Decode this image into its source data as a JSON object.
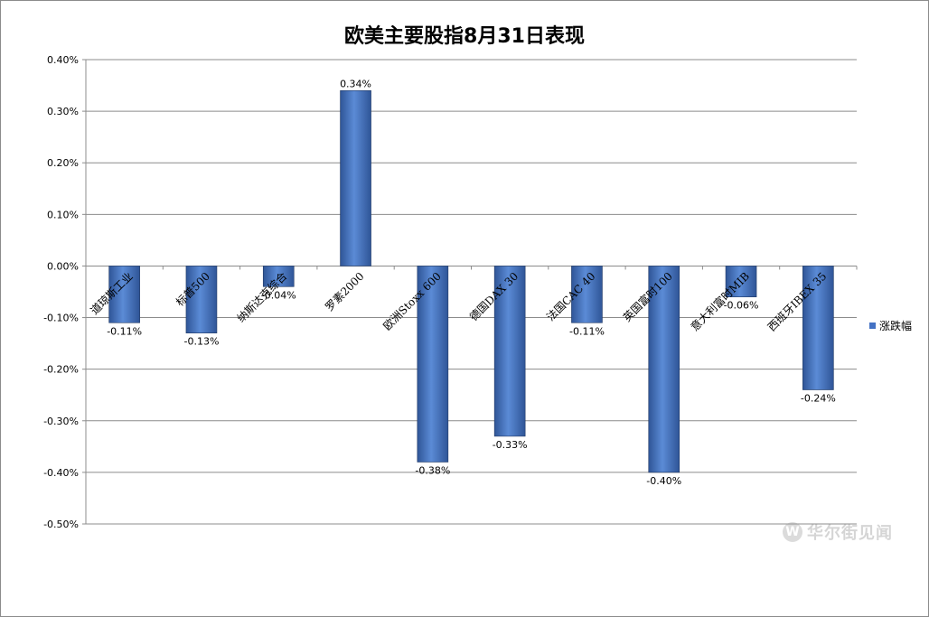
{
  "chart_data": {
    "type": "bar",
    "title": "欧美主要股指8月31日表现",
    "categories": [
      "道琼斯工业",
      "标普500",
      "纳斯达克综合",
      "罗素2000",
      "欧洲Stoxx 600",
      "德国DAX 30",
      "法国CAC 40",
      "英国富时100",
      "意大利富时MIB",
      "西班牙IBEX 35"
    ],
    "series": [
      {
        "name": "涨跌幅",
        "values": [
          -0.11,
          -0.13,
          -0.04,
          0.34,
          -0.38,
          -0.33,
          -0.11,
          -0.4,
          -0.06,
          -0.24
        ]
      }
    ],
    "data_labels": [
      "-0.11%",
      "-0.13%",
      "-0.04%",
      "0.34%",
      "-0.38%",
      "-0.33%",
      "-0.11%",
      "-0.40%",
      "-0.06%",
      "-0.24%"
    ],
    "yticks": [
      "0.40%",
      "0.30%",
      "0.20%",
      "0.10%",
      "0.00%",
      "-0.10%",
      "-0.20%",
      "-0.30%",
      "-0.40%",
      "-0.50%"
    ],
    "ylim": [
      -0.5,
      0.4
    ],
    "grid": true,
    "legend": "right",
    "bar_color": "#4472c4"
  },
  "watermark": {
    "icon": "wallstreetcn-logo-icon",
    "glyph": "W",
    "text": "华尔街见闻"
  }
}
